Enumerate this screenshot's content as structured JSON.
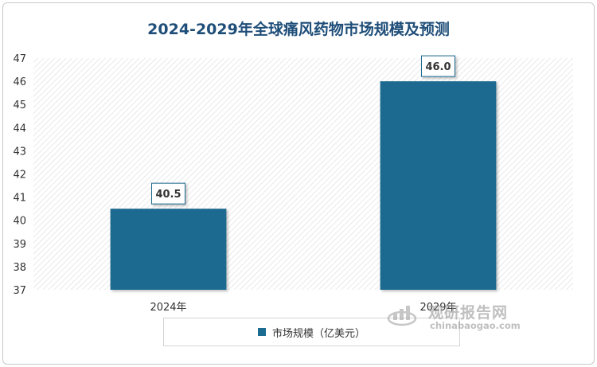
{
  "chart_data": {
    "type": "bar",
    "title": "2024-2029年全球痛风药物市场规模及预测",
    "categories": [
      "2024年",
      "2029年"
    ],
    "series": [
      {
        "name": "市场规模（亿美元）",
        "values": [
          40.5,
          46.0
        ]
      }
    ],
    "data_labels": [
      "40.5",
      "46.0"
    ],
    "ylim": [
      37,
      47
    ],
    "yticks": [
      37,
      38,
      39,
      40,
      41,
      42,
      43,
      44,
      45,
      46,
      47
    ],
    "xlabel": "",
    "ylabel": "",
    "grid": false,
    "legend_position": "bottom",
    "colors": {
      "bar": "#1c6b90",
      "title": "#1f4e79",
      "label_border": "#1c6b90",
      "plot_hatch": "#e2e2e2"
    }
  },
  "watermark": {
    "cn": "观研报告网",
    "en": "chinabaogao.com"
  }
}
